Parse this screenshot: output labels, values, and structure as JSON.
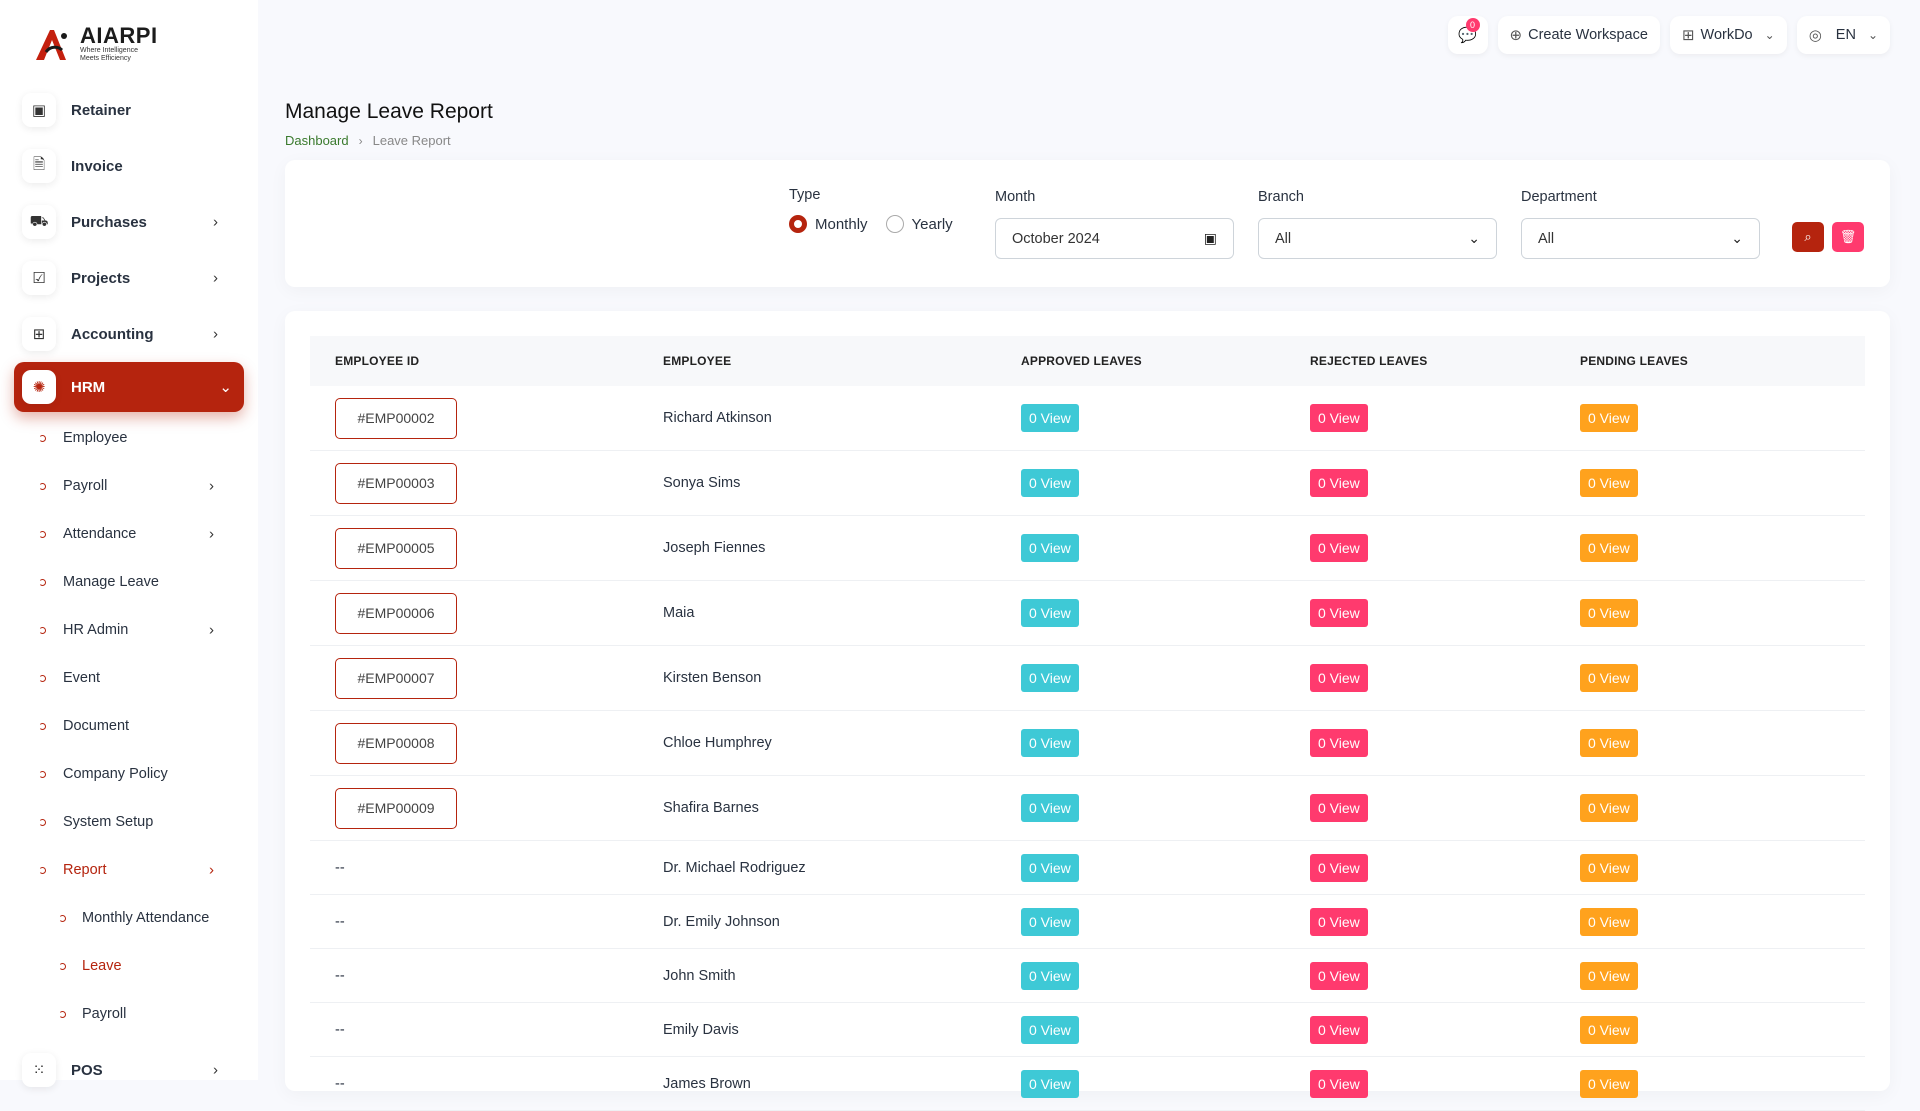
{
  "brand": {
    "name": "AIARPI",
    "tagline_line1": "Where Intelligence",
    "tagline_line2": "Meets Efficiency"
  },
  "topbar": {
    "chat_badge": "0",
    "create_workspace": "Create Workspace",
    "workspace": "WorkDo",
    "language": "EN"
  },
  "sidebar": {
    "items": [
      {
        "label": "Retainer",
        "icon": "retainer-icon"
      },
      {
        "label": "Invoice",
        "icon": "invoice-icon"
      },
      {
        "label": "Purchases",
        "icon": "cart-icon"
      },
      {
        "label": "Projects",
        "icon": "checkbox-icon"
      },
      {
        "label": "Accounting",
        "icon": "grid-icon"
      }
    ],
    "active": {
      "label": "HRM",
      "icon": "hrm-icon"
    },
    "hrm_sub": [
      {
        "label": "Employee"
      },
      {
        "label": "Payroll"
      },
      {
        "label": "Attendance"
      },
      {
        "label": "Manage Leave"
      },
      {
        "label": "HR Admin"
      },
      {
        "label": "Event"
      },
      {
        "label": "Document"
      },
      {
        "label": "Company Policy"
      },
      {
        "label": "System Setup"
      },
      {
        "label": "Report"
      }
    ],
    "report_sub": [
      {
        "label": "Monthly Attendance"
      },
      {
        "label": "Leave"
      },
      {
        "label": "Payroll"
      }
    ],
    "pos": {
      "label": "POS"
    }
  },
  "page": {
    "title": "Manage Leave Report",
    "breadcrumb_home": "Dashboard",
    "breadcrumb_current": "Leave Report"
  },
  "filters": {
    "type_label": "Type",
    "type_monthly": "Monthly",
    "type_yearly": "Yearly",
    "type_selected": "Monthly",
    "month_label": "Month",
    "month_value": "October 2024",
    "branch_label": "Branch",
    "branch_value": "All",
    "department_label": "Department",
    "department_value": "All"
  },
  "colors": {
    "accent": "#b5240e",
    "approved": "#3ec9d6",
    "rejected": "#ff3a6e",
    "pending": "#ffa21d"
  },
  "table": {
    "headers": [
      "EMPLOYEE ID",
      "EMPLOYEE",
      "APPROVED LEAVES",
      "REJECTED LEAVES",
      "PENDING LEAVES"
    ],
    "rows": [
      {
        "id": "#EMP00002",
        "name": "Richard Atkinson",
        "approved": "0 View",
        "rejected": "0 View",
        "pending": "0 View"
      },
      {
        "id": "#EMP00003",
        "name": "Sonya Sims",
        "approved": "0 View",
        "rejected": "0 View",
        "pending": "0 View"
      },
      {
        "id": "#EMP00005",
        "name": "Joseph Fiennes",
        "approved": "0 View",
        "rejected": "0 View",
        "pending": "0 View"
      },
      {
        "id": "#EMP00006",
        "name": "Maia",
        "approved": "0 View",
        "rejected": "0 View",
        "pending": "0 View"
      },
      {
        "id": "#EMP00007",
        "name": "Kirsten Benson",
        "approved": "0 View",
        "rejected": "0 View",
        "pending": "0 View"
      },
      {
        "id": "#EMP00008",
        "name": "Chloe Humphrey",
        "approved": "0 View",
        "rejected": "0 View",
        "pending": "0 View"
      },
      {
        "id": "#EMP00009",
        "name": "Shafira Barnes",
        "approved": "0 View",
        "rejected": "0 View",
        "pending": "0 View"
      },
      {
        "id": "--",
        "name": "Dr. Michael Rodriguez",
        "approved": "0 View",
        "rejected": "0 View",
        "pending": "0 View"
      },
      {
        "id": "--",
        "name": "Dr. Emily Johnson",
        "approved": "0 View",
        "rejected": "0 View",
        "pending": "0 View"
      },
      {
        "id": "--",
        "name": "John Smith",
        "approved": "0 View",
        "rejected": "0 View",
        "pending": "0 View"
      },
      {
        "id": "--",
        "name": "Emily Davis",
        "approved": "0 View",
        "rejected": "0 View",
        "pending": "0 View"
      },
      {
        "id": "--",
        "name": "James Brown",
        "approved": "0 View",
        "rejected": "0 View",
        "pending": "0 View"
      }
    ]
  }
}
